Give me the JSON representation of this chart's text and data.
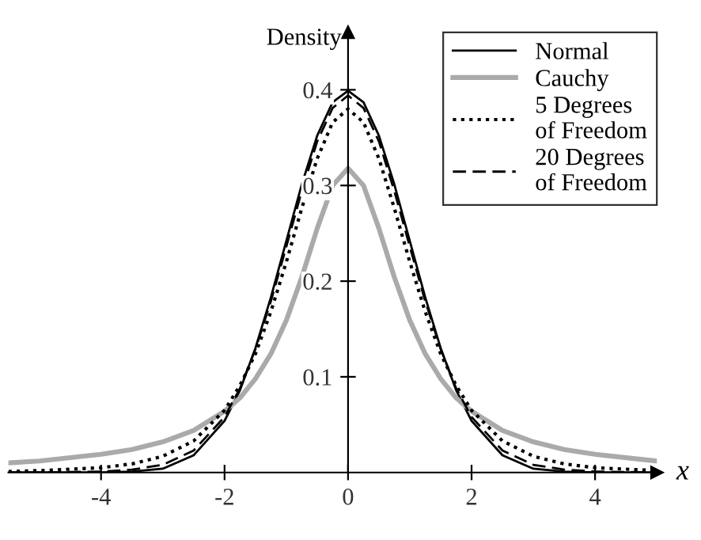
{
  "chart_data": {
    "type": "line",
    "xlabel": "x",
    "ylabel": "Density",
    "x": [
      -5.5,
      -5,
      -4,
      -3.5,
      -3,
      -2.5,
      -2,
      -1.75,
      -1.5,
      -1.25,
      -1,
      -0.75,
      -0.5,
      -0.25,
      0,
      0.25,
      0.5,
      0.75,
      1,
      1.25,
      1.5,
      1.75,
      2,
      2.5,
      3,
      3.5,
      4,
      5
    ],
    "series": [
      {
        "name": "Normal",
        "color": "#000000",
        "line_style": "solid",
        "values": [
          0,
          0,
          0,
          0.001,
          0.004,
          0.018,
          0.054,
          0.086,
          0.13,
          0.183,
          0.242,
          0.301,
          0.352,
          0.387,
          0.399,
          0.387,
          0.352,
          0.301,
          0.242,
          0.183,
          0.13,
          0.086,
          0.054,
          0.018,
          0.004,
          0.001,
          0,
          0
        ]
      },
      {
        "name": "Cauchy",
        "color": "#aaaaaa",
        "line_style": "solid",
        "values": [
          0.01,
          0.012,
          0.019,
          0.024,
          0.032,
          0.044,
          0.064,
          0.078,
          0.098,
          0.124,
          0.159,
          0.204,
          0.255,
          0.3,
          0.318,
          0.3,
          0.255,
          0.204,
          0.159,
          0.124,
          0.098,
          0.078,
          0.064,
          0.044,
          0.032,
          0.024,
          0.019,
          0.012
        ]
      },
      {
        "name": "5 Degrees\nof Freedom",
        "color": "#000000",
        "line_style": "dotted",
        "values": [
          0.001,
          0.002,
          0.005,
          0.009,
          0.017,
          0.033,
          0.065,
          0.091,
          0.124,
          0.168,
          0.22,
          0.276,
          0.328,
          0.366,
          0.38,
          0.366,
          0.328,
          0.276,
          0.22,
          0.168,
          0.124,
          0.091,
          0.065,
          0.033,
          0.017,
          0.009,
          0.005,
          0.002
        ]
      },
      {
        "name": "20 Degrees\nof Freedom",
        "color": "#000000",
        "line_style": "dashed",
        "values": [
          0,
          0,
          0.001,
          0.003,
          0.008,
          0.023,
          0.058,
          0.088,
          0.129,
          0.179,
          0.236,
          0.294,
          0.346,
          0.381,
          0.394,
          0.381,
          0.346,
          0.294,
          0.236,
          0.179,
          0.129,
          0.088,
          0.058,
          0.023,
          0.008,
          0.003,
          0.001,
          0
        ]
      }
    ],
    "xlim": [
      -5.5,
      5
    ],
    "ylim": [
      0,
      0.46
    ],
    "xticks": [
      -4,
      -2,
      0,
      2,
      4
    ],
    "yticks": [
      0.1,
      0.2,
      0.3,
      0.4
    ],
    "grid": false,
    "legend": "top right",
    "marker": "none"
  }
}
